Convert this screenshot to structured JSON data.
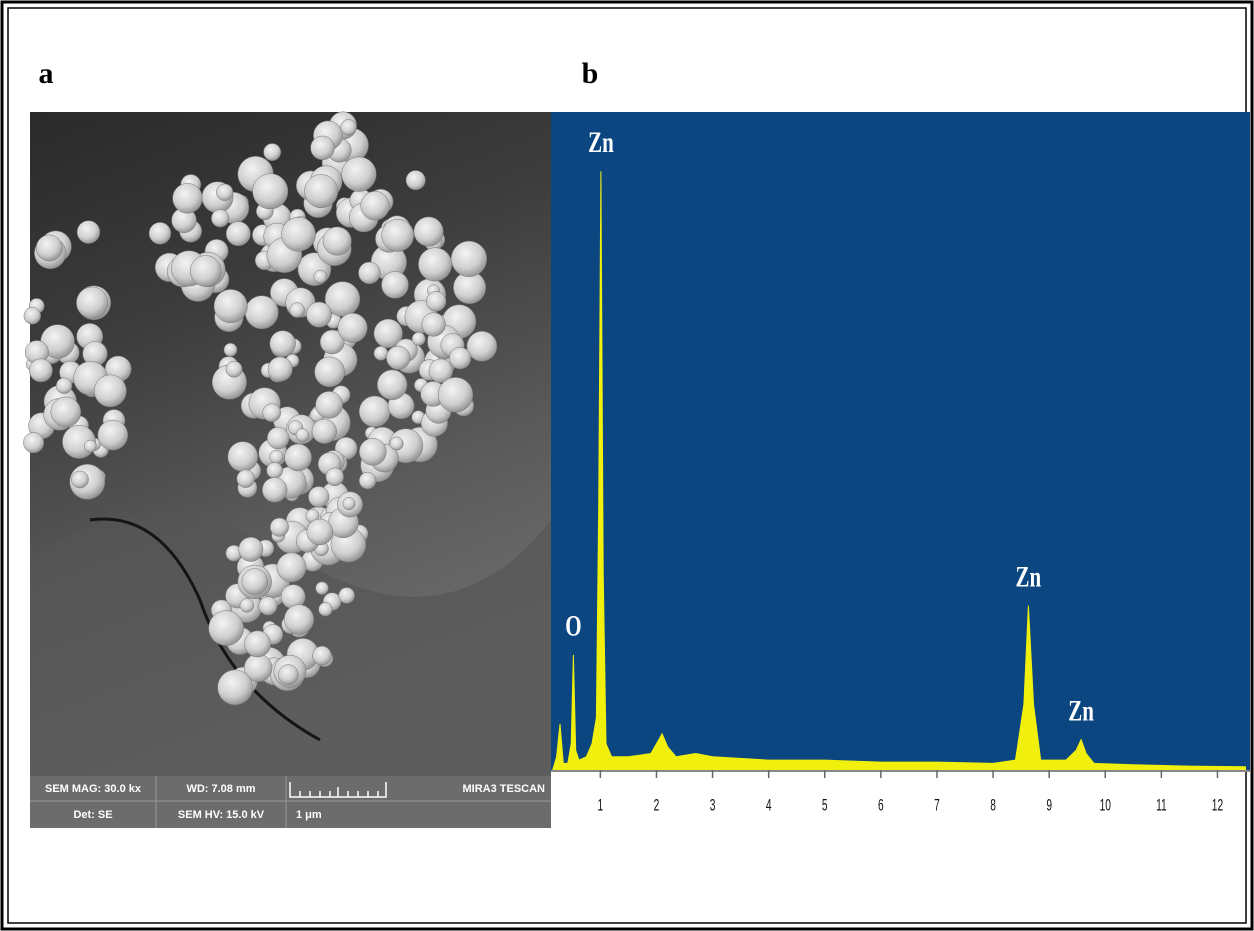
{
  "panels": {
    "a": "a",
    "b": "b"
  },
  "sem": {
    "info_bar": {
      "mag": "SEM MAG: 30.0 kx",
      "wd": "WD: 7.08 mm",
      "brand": "MIRA3 TESCAN",
      "det": "Det: SE",
      "hv": "SEM HV: 15.0 kV",
      "scale": "1 μm"
    }
  },
  "chart_data": {
    "type": "area",
    "background": "#0b4680",
    "color": "#f0f00c",
    "x": [
      0.15,
      0.22,
      0.28,
      0.34,
      0.42,
      0.48,
      0.52,
      0.56,
      0.62,
      0.75,
      0.85,
      0.93,
      0.97,
      1.01,
      1.05,
      1.1,
      1.2,
      1.5,
      1.9,
      2.0,
      2.1,
      2.2,
      2.35,
      2.7,
      3.0,
      4.0,
      5.0,
      6.0,
      7.0,
      8.0,
      8.4,
      8.55,
      8.63,
      8.72,
      8.85,
      9.3,
      9.48,
      9.57,
      9.66,
      9.8,
      10.5,
      11.5,
      12.5
    ],
    "values": [
      0,
      2,
      7,
      1,
      1,
      4,
      17.5,
      3,
      1.5,
      2,
      4,
      8,
      40,
      91,
      30,
      4,
      2,
      2,
      2.5,
      4,
      5.5,
      3.5,
      2,
      2.5,
      2,
      1.5,
      1.5,
      1.2,
      1.2,
      1,
      1.5,
      10,
      25,
      10,
      1.5,
      1.5,
      3,
      4.6,
      2.5,
      1,
      0.8,
      0.6,
      0.5
    ],
    "xlim": [
      0.12,
      12.58
    ],
    "xticks": [
      1,
      2,
      3,
      4,
      5,
      6,
      7,
      8,
      9,
      10,
      11,
      12
    ],
    "ylim": [
      0,
      100
    ],
    "annotations": [
      {
        "label": "Zn",
        "x": 1.01
      },
      {
        "label": "O",
        "x": 0.52
      },
      {
        "label": "Zn",
        "x": 8.63
      },
      {
        "label": "Zn",
        "x": 9.57
      }
    ]
  }
}
